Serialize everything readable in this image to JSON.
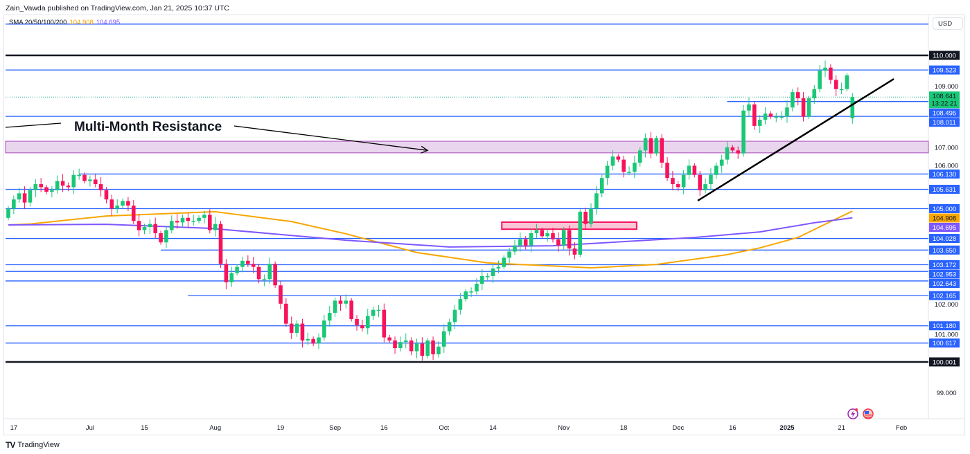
{
  "header": {
    "publisher": "Zain_Vawda published on TradingView.com, Jan 21, 2025 10:37 UTC"
  },
  "legend": {
    "label": "SMA 20/50/100/200",
    "sma_orange": "104.908",
    "sma_purple": "104.695"
  },
  "currency_button": "USD",
  "brand": "TradingView",
  "colors": {
    "up": "#089981",
    "up_fill": "#1ac777",
    "down": "#f7135b",
    "level": "#2962ff",
    "sma_orange": "#f7a600",
    "sma_purple": "#7e57ff",
    "zone": "#ab47bc"
  },
  "chart_data": {
    "type": "candlestick",
    "symbol_currency": "USD",
    "ylim": [
      98.3,
      111.3
    ],
    "x_ticks": [
      {
        "i": 1,
        "label": "17"
      },
      {
        "i": 15,
        "label": "Jul"
      },
      {
        "i": 25,
        "label": "15"
      },
      {
        "i": 38,
        "label": "Aug"
      },
      {
        "i": 50,
        "label": "19"
      },
      {
        "i": 60,
        "label": "Sep"
      },
      {
        "i": 69,
        "label": "16"
      },
      {
        "i": 80,
        "label": "Oct"
      },
      {
        "i": 89,
        "label": "14"
      },
      {
        "i": 102,
        "label": "Nov"
      },
      {
        "i": 113,
        "label": "18"
      },
      {
        "i": 123,
        "label": "Dec"
      },
      {
        "i": 133,
        "label": "16"
      },
      {
        "i": 143,
        "label": "2025"
      },
      {
        "i": 153,
        "label": "21"
      },
      {
        "i": 164,
        "label": "Feb"
      }
    ],
    "y_ticks": [
      "109.000",
      "107.000",
      "106.000",
      "102.000",
      "101.000",
      "99.000"
    ],
    "closes": [
      105.0,
      105.3,
      105.5,
      105.2,
      105.6,
      105.8,
      105.7,
      105.55,
      105.6,
      105.9,
      105.75,
      105.7,
      106.1,
      106.1,
      105.9,
      105.95,
      105.8,
      105.6,
      105.3,
      105.0,
      105.1,
      105.25,
      105.1,
      104.6,
      104.3,
      104.4,
      104.5,
      104.2,
      103.9,
      104.3,
      104.6,
      104.55,
      104.7,
      104.6,
      104.6,
      104.7,
      104.8,
      104.3,
      104.5,
      103.2,
      102.6,
      102.9,
      103.1,
      103.3,
      103.2,
      103.1,
      102.7,
      102.7,
      103.2,
      102.5,
      101.9,
      101.25,
      100.95,
      101.25,
      100.7,
      100.75,
      100.6,
      100.8,
      101.35,
      101.6,
      102.0,
      101.9,
      102.0,
      101.4,
      101.2,
      101.1,
      101.5,
      101.7,
      101.7,
      100.8,
      100.7,
      100.45,
      100.65,
      100.7,
      100.35,
      100.6,
      100.2,
      100.7,
      100.25,
      100.5,
      101.0,
      101.3,
      101.7,
      102.05,
      102.3,
      102.3,
      102.55,
      102.8,
      102.8,
      103.05,
      103.1,
      103.4,
      103.6,
      103.8,
      104.0,
      103.8,
      104.2,
      104.3,
      104.1,
      104.2,
      104.0,
      103.8,
      104.3,
      103.7,
      103.5,
      104.9,
      104.5,
      105.0,
      105.5,
      106.0,
      106.4,
      106.7,
      106.6,
      106.2,
      106.2,
      106.5,
      106.9,
      107.3,
      106.8,
      107.3,
      106.5,
      106.0,
      105.8,
      105.7,
      106.1,
      106.4,
      106.1,
      105.6,
      105.8,
      106.1,
      106.4,
      106.6,
      107.0,
      106.9,
      106.8,
      108.2,
      108.4,
      107.7,
      107.9,
      108.1,
      108.0,
      108.0,
      108.0,
      108.3,
      108.8,
      108.6,
      108.0,
      108.6,
      108.9,
      109.5,
      109.6,
      109.2,
      108.9,
      108.9,
      109.35,
      108.641
    ],
    "last_open": 107.95,
    "current_price": "108.641",
    "countdown": "13:22:21",
    "levels": [
      {
        "price": 111.02,
        "label": "",
        "color": "blue"
      },
      {
        "price": 110.0,
        "label": "110.000",
        "color": "black"
      },
      {
        "price": 109.523,
        "label": "109.523",
        "color": "blue"
      },
      {
        "price": 108.495,
        "label": "108.495",
        "color": "blue",
        "start_i": 132
      },
      {
        "price": 108.011,
        "label": "108.011",
        "color": "blue"
      },
      {
        "price": 106.13,
        "label": "106.130",
        "color": "blue",
        "start_i": 13
      },
      {
        "price": 105.631,
        "label": "105.631",
        "color": "blue"
      },
      {
        "price": 105.0,
        "label": "105.000",
        "color": "blue"
      },
      {
        "price": 104.028,
        "label": "104.028",
        "color": "blue"
      },
      {
        "price": 103.65,
        "label": "103.650",
        "color": "blue",
        "start_i": 28
      },
      {
        "price": 103.172,
        "label": "103.172",
        "color": "blue"
      },
      {
        "price": 102.953,
        "label": "102.953",
        "color": "blue"
      },
      {
        "price": 102.643,
        "label": "102.643",
        "color": "blue"
      },
      {
        "price": 102.165,
        "label": "102.165",
        "color": "blue",
        "start_i": 33
      },
      {
        "price": 101.18,
        "label": "101.180",
        "color": "blue"
      },
      {
        "price": 100.617,
        "label": "100.617",
        "color": "blue"
      },
      {
        "price": 100.001,
        "label": "100.001",
        "color": "black"
      }
    ],
    "sma_orange": [
      [
        0,
        104.47
      ],
      [
        4,
        104.5
      ],
      [
        18,
        104.76
      ],
      [
        38,
        104.9
      ],
      [
        52,
        104.58
      ],
      [
        62,
        104.18
      ],
      [
        75,
        103.57
      ],
      [
        88,
        103.23
      ],
      [
        107,
        103.07
      ],
      [
        119,
        103.18
      ],
      [
        132,
        103.5
      ],
      [
        138,
        103.72
      ],
      [
        145,
        104.06
      ],
      [
        151,
        104.58
      ],
      [
        155,
        104.92
      ]
    ],
    "sma_purple": [
      [
        0,
        104.47
      ],
      [
        18,
        104.49
      ],
      [
        37,
        104.36
      ],
      [
        62,
        103.97
      ],
      [
        81,
        103.75
      ],
      [
        100,
        103.79
      ],
      [
        126,
        104.06
      ],
      [
        138,
        104.24
      ],
      [
        148,
        104.54
      ],
      [
        155,
        104.7
      ]
    ],
    "resistance_zone": [
      106.82,
      107.2
    ],
    "highlight_box": {
      "from_i": 91,
      "to_i": 115,
      "low": 104.33,
      "high": 104.56
    },
    "trendline": [
      [
        126.6,
        105.26
      ],
      [
        162.6,
        109.23
      ]
    ],
    "annotation": {
      "text": "Multi-Month Resistance",
      "arrow_to": [
        77,
        106.9
      ]
    }
  }
}
